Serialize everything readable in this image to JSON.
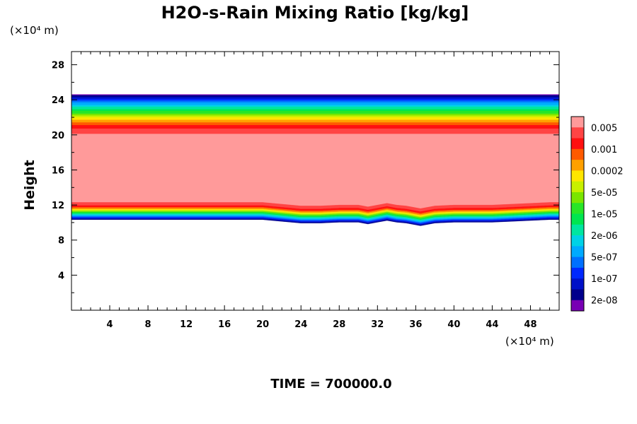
{
  "chart_data": {
    "type": "contour",
    "title": "H2O-s-Rain Mixing Ratio [kg/kg]",
    "xlabel": "",
    "ylabel": "Height",
    "x_unit": "(×10⁴ m)",
    "y_unit": "(×10⁴ m)",
    "xlim": [
      0,
      51
    ],
    "ylim": [
      0,
      29.5
    ],
    "x_ticks": [
      4,
      8,
      12,
      16,
      20,
      24,
      28,
      32,
      36,
      40,
      44,
      48
    ],
    "y_ticks": [
      4,
      8,
      12,
      16,
      20,
      24,
      28
    ],
    "footer": "TIME = 700000.0",
    "grid": false,
    "legend": "right",
    "colorbar": {
      "levels_labeled": [
        "0.005",
        "0.001",
        "0.0002",
        "5e-05",
        "1e-05",
        "2e-06",
        "5e-07",
        "1e-07",
        "2e-08"
      ],
      "colors_top_to_bottom": [
        "#ff9a9a",
        "#ff4444",
        "#ff1010",
        "#ff5a00",
        "#ffa000",
        "#ffe600",
        "#c8f000",
        "#7ae600",
        "#28e628",
        "#00e650",
        "#00e6a0",
        "#00d2e6",
        "#00aaff",
        "#0070ff",
        "#0028ff",
        "#0010c8",
        "#00008c",
        "#7800b4"
      ]
    },
    "layers": [
      {
        "level_index": 17,
        "top": 24.6
      },
      {
        "level_index": 16,
        "top": 24.5
      },
      {
        "level_index": 15,
        "top": 24.3
      },
      {
        "level_index": 14,
        "top": 24.1
      },
      {
        "level_index": 13,
        "top": 23.9
      },
      {
        "level_index": 12,
        "top": 23.7
      },
      {
        "level_index": 11,
        "top": 23.4
      },
      {
        "level_index": 10,
        "top": 23.2
      },
      {
        "level_index": 9,
        "top": 22.9
      },
      {
        "level_index": 8,
        "top": 22.7
      },
      {
        "level_index": 7,
        "top": 22.4
      },
      {
        "level_index": 6,
        "top": 22.2
      },
      {
        "level_index": 5,
        "top": 22.0
      },
      {
        "level_index": 4,
        "top": 21.7
      },
      {
        "level_index": 3,
        "top": 21.4
      },
      {
        "level_index": 2,
        "top": 21.1
      },
      {
        "level_index": 1,
        "top": 20.7
      },
      {
        "level_index": 0,
        "top": 20.1
      }
    ],
    "rain_base": {
      "x": [
        0,
        4,
        8,
        12,
        16,
        20,
        21,
        22,
        24,
        26,
        28,
        30,
        31,
        32,
        33,
        34,
        35,
        36,
        36.5,
        37,
        38,
        40,
        42,
        44,
        46,
        48,
        50,
        51
      ],
      "y": [
        12.3,
        12.3,
        12.3,
        12.3,
        12.3,
        12.3,
        12.2,
        12.1,
        11.9,
        11.9,
        12.0,
        12.0,
        11.8,
        12.0,
        12.2,
        12.0,
        11.9,
        11.7,
        11.6,
        11.7,
        11.9,
        12.0,
        12.0,
        12.0,
        12.1,
        12.2,
        12.3,
        12.3
      ]
    },
    "bottom_band_levels": [
      1,
      2,
      3,
      4,
      5,
      6,
      7,
      8,
      9,
      10,
      11,
      12,
      13,
      14,
      15,
      16
    ],
    "bottom_band_thickness": [
      0.35,
      0.2,
      0.12,
      0.12,
      0.1,
      0.1,
      0.1,
      0.1,
      0.1,
      0.1,
      0.1,
      0.1,
      0.1,
      0.1,
      0.1,
      0.08
    ]
  }
}
